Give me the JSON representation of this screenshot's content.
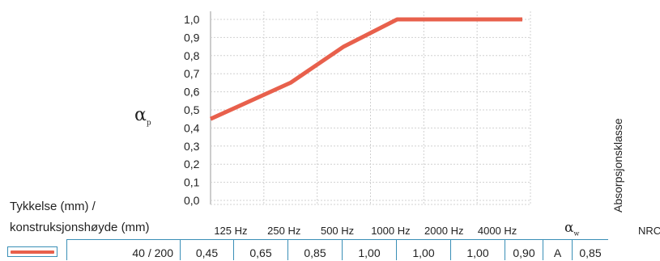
{
  "chart_data": {
    "type": "line",
    "ylabel": "α",
    "ylabel_subscript": "p",
    "ylim": [
      0,
      1
    ],
    "y_ticks": [
      "0,0",
      "0,1",
      "0,2",
      "0,3",
      "0,4",
      "0,5",
      "0,6",
      "0,7",
      "0,8",
      "0,9",
      "1,0"
    ],
    "categories": [
      "125 Hz",
      "250 Hz",
      "500 Hz",
      "1000 Hz",
      "2000 Hz",
      "4000 Hz"
    ],
    "series": [
      {
        "values": [
          0.45,
          0.65,
          0.85,
          1.0,
          1.0,
          1.0
        ],
        "color": "#e8604c"
      }
    ],
    "grid": true
  },
  "table": {
    "header_line1": "Tykkelse (mm) /",
    "header_line2": "konstruksjonshøyde (mm)",
    "alpha_w_symbol": "α",
    "alpha_w_subscript": "w",
    "absorption_class_header": "Absorpsjonsklasse",
    "nrc_header": "NRC",
    "rows": [
      {
        "thickness": "40 / 200",
        "values": [
          "0,45",
          "0,65",
          "0,85",
          "1,00",
          "1,00",
          "1,00"
        ],
        "alpha_w": "0,90",
        "absorption_class": "A",
        "nrc": "0,85"
      }
    ]
  },
  "colors": {
    "series": "#e8604c",
    "table_border": "#3a8fb7",
    "grid": "#d0d0d0"
  }
}
